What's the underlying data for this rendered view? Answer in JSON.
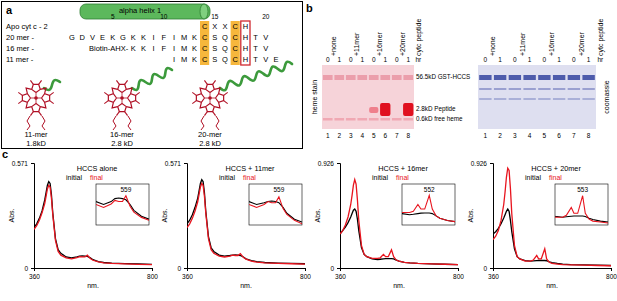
{
  "panel_a": {
    "label": "a",
    "header": "Apo cyt c - 2",
    "helix": "alpha helix 1",
    "positions": [
      5,
      10,
      15,
      20
    ],
    "motif": [
      null,
      null,
      null,
      null,
      null,
      null,
      null,
      null,
      null,
      null,
      null,
      null,
      null,
      "C",
      "X",
      "X",
      "C",
      "H",
      null,
      null,
      null
    ],
    "sequences": [
      {
        "label": "20 mer -",
        "residues": [
          "G",
          "D",
          "V",
          "E",
          "K",
          "G",
          "K",
          "K",
          "I",
          "F",
          "I",
          "M",
          "K",
          "C",
          "S",
          "Q",
          "C",
          "H",
          "T",
          "V",
          null
        ]
      },
      {
        "label": "16 mer -",
        "prefix": "Biotin-AHX-",
        "residues": [
          null,
          null,
          null,
          null,
          null,
          null,
          "K",
          "K",
          "I",
          "F",
          "I",
          "M",
          "K",
          "C",
          "S",
          "Q",
          "C",
          "H",
          "T",
          "V",
          null
        ]
      },
      {
        "label": "11 mer -",
        "residues": [
          null,
          null,
          null,
          null,
          null,
          null,
          null,
          null,
          null,
          null,
          "I",
          "M",
          "K",
          "C",
          "S",
          "Q",
          "C",
          "H",
          "T",
          "V",
          "E"
        ]
      }
    ],
    "structures": [
      {
        "name": "11-mer",
        "mass": "1.8kD"
      },
      {
        "name": "16-mer",
        "mass": "2.8 kD"
      },
      {
        "name": "20-mer",
        "mass": "2.8 kD"
      }
    ]
  },
  "panel_b": {
    "label": "b",
    "conditions": [
      "+none",
      "+11mer",
      "+16mer",
      "+20mer",
      "cytc peptide"
    ],
    "times": [
      0,
      1
    ],
    "time_unit": "hr",
    "lanes": [
      1,
      2,
      3,
      4,
      5,
      6,
      7,
      8
    ],
    "left_title": "heme stain",
    "right_title": "coomassie",
    "markers": [
      {
        "mass": "56.5kD",
        "name": "GST-HCCS"
      },
      {
        "mass": "2.8kD",
        "name": "Peptide"
      },
      {
        "mass": "0.6kD",
        "name": "free heme"
      }
    ]
  },
  "panel_c": {
    "label": "c"
  },
  "chart_data": [
    {
      "type": "line",
      "title": "HCCS alone",
      "x": [
        360,
        370,
        380,
        390,
        400,
        405,
        410,
        415,
        420,
        425,
        430,
        440,
        450,
        460,
        480,
        500,
        520,
        530,
        540,
        550,
        559,
        570,
        580,
        600,
        620,
        650,
        700,
        750,
        800
      ],
      "series": [
        {
          "name": "initial",
          "color": "#000000",
          "values": [
            0.22,
            0.24,
            0.27,
            0.31,
            0.37,
            0.41,
            0.45,
            0.47,
            0.46,
            0.4,
            0.3,
            0.16,
            0.1,
            0.08,
            0.06,
            0.055,
            0.06,
            0.065,
            0.066,
            0.065,
            0.063,
            0.055,
            0.045,
            0.035,
            0.03,
            0.027,
            0.024,
            0.022,
            0.02
          ]
        },
        {
          "name": "final",
          "color": "#e8141e",
          "values": [
            0.21,
            0.23,
            0.26,
            0.3,
            0.35,
            0.39,
            0.43,
            0.45,
            0.44,
            0.38,
            0.29,
            0.15,
            0.09,
            0.07,
            0.055,
            0.05,
            0.056,
            0.062,
            0.06,
            0.06,
            0.07,
            0.052,
            0.042,
            0.033,
            0.028,
            0.025,
            0.022,
            0.02,
            0.018
          ]
        }
      ],
      "xlim": [
        360,
        800
      ],
      "xticks": [
        360,
        800
      ],
      "ylim": [
        0,
        0.571
      ],
      "yticks": [
        0,
        0.571
      ],
      "xlabel": "nm.",
      "ylabel": "Abs.",
      "annotations": [
        {
          "text": "559",
          "x": 559
        }
      ],
      "inset": {
        "xlim": [
          480,
          620
        ],
        "ylim": [
          0.02,
          0.09
        ]
      }
    },
    {
      "type": "line",
      "title": "HCCS + 11mer",
      "x": [
        360,
        370,
        380,
        390,
        400,
        405,
        410,
        415,
        420,
        425,
        430,
        440,
        450,
        460,
        480,
        500,
        520,
        530,
        540,
        550,
        559,
        570,
        580,
        600,
        620,
        650,
        700,
        750,
        800
      ],
      "series": [
        {
          "name": "initial",
          "color": "#000000",
          "values": [
            0.24,
            0.26,
            0.29,
            0.33,
            0.38,
            0.42,
            0.46,
            0.48,
            0.47,
            0.41,
            0.31,
            0.17,
            0.11,
            0.09,
            0.07,
            0.065,
            0.068,
            0.07,
            0.071,
            0.07,
            0.068,
            0.06,
            0.05,
            0.04,
            0.035,
            0.03,
            0.027,
            0.025,
            0.023
          ]
        },
        {
          "name": "final",
          "color": "#e8141e",
          "values": [
            0.22,
            0.24,
            0.27,
            0.31,
            0.36,
            0.4,
            0.44,
            0.46,
            0.45,
            0.39,
            0.3,
            0.16,
            0.1,
            0.08,
            0.065,
            0.06,
            0.065,
            0.07,
            0.068,
            0.068,
            0.078,
            0.058,
            0.048,
            0.038,
            0.032,
            0.028,
            0.025,
            0.023,
            0.021
          ]
        }
      ],
      "xlim": [
        360,
        800
      ],
      "xticks": [
        360,
        800
      ],
      "ylim": [
        0,
        0.571
      ],
      "yticks": [
        0,
        0.571
      ],
      "xlabel": "nm.",
      "ylabel": "Abs.",
      "annotations": [
        {
          "text": "559",
          "x": 559
        }
      ],
      "inset": {
        "xlim": [
          480,
          620
        ],
        "ylim": [
          0.03,
          0.1
        ]
      }
    },
    {
      "type": "line",
      "title": "HCCS + 16mer",
      "x": [
        360,
        370,
        380,
        390,
        400,
        405,
        410,
        415,
        420,
        425,
        430,
        440,
        450,
        460,
        480,
        500,
        510,
        522,
        530,
        540,
        552,
        560,
        570,
        580,
        600,
        620,
        650,
        700,
        750,
        800
      ],
      "series": [
        {
          "name": "initial",
          "color": "#000000",
          "values": [
            0.3,
            0.33,
            0.36,
            0.4,
            0.45,
            0.48,
            0.51,
            0.52,
            0.5,
            0.43,
            0.33,
            0.18,
            0.12,
            0.1,
            0.08,
            0.075,
            0.077,
            0.08,
            0.082,
            0.083,
            0.083,
            0.08,
            0.07,
            0.06,
            0.05,
            0.045,
            0.04,
            0.036,
            0.033,
            0.03
          ]
        },
        {
          "name": "final",
          "color": "#e8141e",
          "values": [
            0.3,
            0.33,
            0.38,
            0.45,
            0.56,
            0.64,
            0.73,
            0.78,
            0.74,
            0.6,
            0.42,
            0.2,
            0.12,
            0.1,
            0.085,
            0.085,
            0.09,
            0.12,
            0.1,
            0.1,
            0.16,
            0.1,
            0.07,
            0.06,
            0.05,
            0.045,
            0.04,
            0.036,
            0.033,
            0.03
          ]
        }
      ],
      "xlim": [
        360,
        800
      ],
      "xticks": [
        360,
        800
      ],
      "ylim": [
        0,
        0.926
      ],
      "yticks": [
        0,
        0.926
      ],
      "xlabel": "nm.",
      "ylabel": "Abs.",
      "annotations": [
        {
          "text": "552",
          "x": 552
        }
      ],
      "inset": {
        "xlim": [
          480,
          620
        ],
        "ylim": [
          0.03,
          0.21
        ]
      }
    },
    {
      "type": "line",
      "title": "HCCS + 20mer",
      "x": [
        360,
        370,
        380,
        390,
        400,
        405,
        410,
        415,
        420,
        425,
        430,
        440,
        450,
        460,
        480,
        500,
        510,
        523,
        530,
        540,
        553,
        560,
        570,
        580,
        600,
        620,
        650,
        700,
        750,
        800
      ],
      "series": [
        {
          "name": "initial",
          "color": "#000000",
          "values": [
            0.3,
            0.32,
            0.35,
            0.39,
            0.44,
            0.47,
            0.5,
            0.52,
            0.5,
            0.42,
            0.32,
            0.17,
            0.1,
            0.08,
            0.065,
            0.06,
            0.062,
            0.065,
            0.066,
            0.066,
            0.066,
            0.064,
            0.055,
            0.048,
            0.04,
            0.035,
            0.03,
            0.027,
            0.025,
            0.022
          ]
        },
        {
          "name": "final",
          "color": "#e8141e",
          "values": [
            0.25,
            0.28,
            0.33,
            0.42,
            0.56,
            0.67,
            0.8,
            0.88,
            0.86,
            0.7,
            0.48,
            0.2,
            0.1,
            0.08,
            0.06,
            0.06,
            0.07,
            0.11,
            0.08,
            0.08,
            0.17,
            0.08,
            0.05,
            0.04,
            0.035,
            0.03,
            0.028,
            0.025,
            0.022,
            0.02
          ]
        }
      ],
      "xlim": [
        360,
        800
      ],
      "xticks": [
        360,
        800
      ],
      "ylim": [
        0,
        0.926
      ],
      "yticks": [
        0,
        0.926
      ],
      "xlabel": "nm.",
      "ylabel": "Abs.",
      "annotations": [
        {
          "text": "553",
          "x": 553
        }
      ],
      "inset": {
        "xlim": [
          480,
          620
        ],
        "ylim": [
          0.02,
          0.23
        ]
      }
    }
  ]
}
